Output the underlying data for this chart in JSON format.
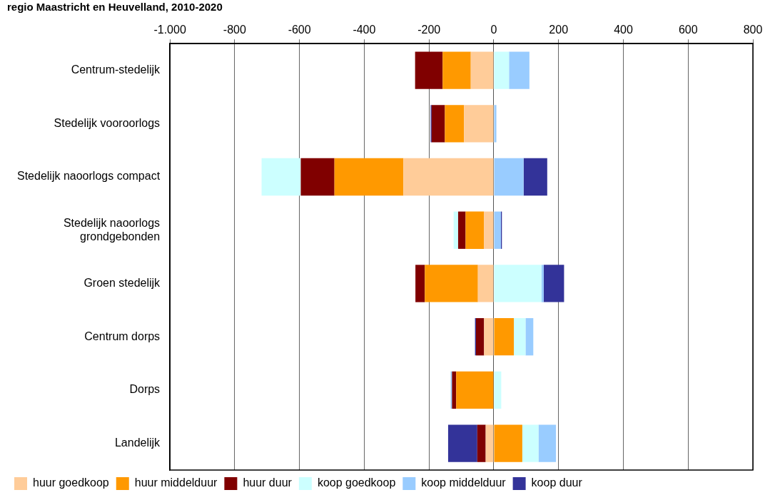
{
  "chart_data": {
    "type": "bar",
    "orientation": "horizontal",
    "stacked": true,
    "title": "regio Maastricht en Heuvelland, 2010-2020",
    "categories": [
      "Centrum-stedelijk",
      "Stedelijk vooroorlogs",
      "Stedelijk naoorlogs compact",
      "Stedelijk naoorlogs grondgebonden",
      "Groen stedelijk",
      "Centrum dorps",
      "Dorps",
      "Landelijk"
    ],
    "series": [
      {
        "name": "huur goedkoop",
        "color": "#ffcc99",
        "values": [
          -71,
          -92,
          -279,
          -30,
          -49,
          -30,
          0,
          -25
        ]
      },
      {
        "name": "huur middelduur",
        "color": "#ff9900",
        "values": [
          -87,
          -59,
          -213,
          -57,
          -164,
          62,
          -116,
          88
        ]
      },
      {
        "name": "huur duur",
        "color": "#800000",
        "values": [
          -85,
          -41,
          -104,
          -23,
          -29,
          -25,
          -13,
          -26
        ]
      },
      {
        "name": "koop goedkoop",
        "color": "#ccffff",
        "values": [
          47,
          0,
          -121,
          -14,
          147,
          36,
          23,
          50
        ]
      },
      {
        "name": "koop middelduur",
        "color": "#99ccff",
        "values": [
          63,
          8,
          92,
          22,
          7,
          24,
          -4,
          54
        ]
      },
      {
        "name": "koop duur",
        "color": "#333399",
        "values": [
          0,
          -3,
          73,
          3,
          63,
          -3,
          0,
          -90
        ]
      }
    ],
    "xlim": [
      -1000,
      800
    ],
    "xticks": [
      {
        "value": -1000,
        "label": "-1.000"
      },
      -800,
      -600,
      -400,
      -200,
      0,
      200,
      400,
      600,
      800
    ],
    "grid": "x",
    "legend": "bottom"
  }
}
